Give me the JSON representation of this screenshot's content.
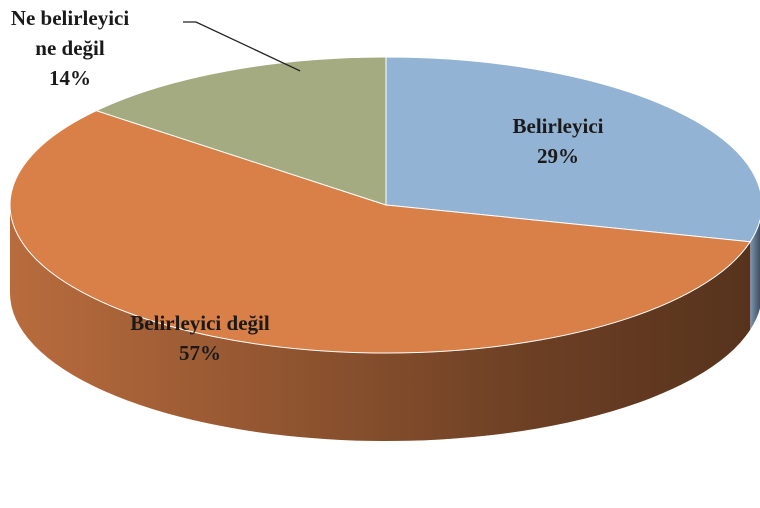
{
  "chart_data": {
    "type": "pie",
    "categories": [
      "Belirleyici",
      "Belirleyici değil",
      "Ne belirleyici ne değil"
    ],
    "values": [
      29,
      57,
      14
    ],
    "value_labels": [
      "29%",
      "57%",
      "14%"
    ],
    "colors": [
      "#93b3d4",
      "#d97f48",
      "#a5ab80"
    ]
  }
}
